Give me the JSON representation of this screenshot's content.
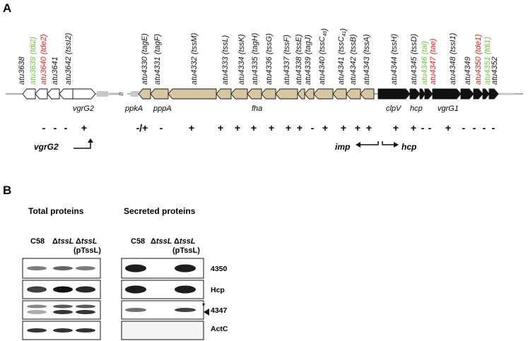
{
  "colors": {
    "black": "#111111",
    "tan": "#d8c7a2",
    "white": "#ffffff",
    "green": "#6fc13b",
    "red": "#e0201b",
    "bg_line": "#7a7a7a",
    "grey_arrow": "#c8c8c8"
  },
  "panelA": {
    "label": "A",
    "genes": [
      {
        "id": "g1",
        "parts": [
          {
            "t": "atu3638",
            "c": "black"
          }
        ],
        "fill": "white",
        "sign": "-"
      },
      {
        "id": "g2",
        "parts": [
          {
            "t": "atu3639",
            "c": "green"
          },
          {
            "t": " (tdi2)",
            "c": "green"
          }
        ],
        "fill": "white",
        "sign": "-"
      },
      {
        "id": "g3",
        "parts": [
          {
            "t": "atu3640",
            "c": "red"
          },
          {
            "t": " (tde2)",
            "c": "red"
          }
        ],
        "fill": "white",
        "sign": "-"
      },
      {
        "id": "g4",
        "parts": [
          {
            "t": "atu3641",
            "c": "black"
          }
        ],
        "fill": "white",
        "sign": "+"
      },
      {
        "id": "g5",
        "parts": [
          {
            "t": "atu3642",
            "c": "black"
          },
          {
            "t": " (tssI2)",
            "c": "black"
          }
        ],
        "fill": "white",
        "sign": ""
      },
      {
        "id": "g6",
        "parts": [
          {
            "t": "atu4330",
            "c": "black"
          },
          {
            "t": " (tagE)",
            "c": "black"
          }
        ],
        "fill": "tan",
        "sign": "-/+"
      },
      {
        "id": "g7",
        "parts": [
          {
            "t": "atu4331",
            "c": "black"
          },
          {
            "t": " (tagF)",
            "c": "black"
          }
        ],
        "fill": "tan",
        "sign": "-"
      },
      {
        "id": "g8",
        "parts": [
          {
            "t": "atu4332",
            "c": "black"
          },
          {
            "t": " (tssM)",
            "c": "black"
          }
        ],
        "fill": "tan",
        "sign": "+"
      },
      {
        "id": "g9",
        "parts": [
          {
            "t": "atu4333",
            "c": "black"
          },
          {
            "t": " (tssL)",
            "c": "black"
          }
        ],
        "fill": "tan",
        "sign": "+"
      },
      {
        "id": "g10",
        "parts": [
          {
            "t": "atu4334",
            "c": "black"
          },
          {
            "t": " (tssK)",
            "c": "black"
          }
        ],
        "fill": "tan",
        "sign": "+"
      },
      {
        "id": "g11",
        "parts": [
          {
            "t": "atu4335",
            "c": "black"
          },
          {
            "t": " (tagH)",
            "c": "black"
          }
        ],
        "fill": "tan",
        "sign": "+"
      },
      {
        "id": "g12",
        "parts": [
          {
            "t": "atu4336",
            "c": "black"
          },
          {
            "t": " (tssG)",
            "c": "black"
          }
        ],
        "fill": "tan",
        "sign": "+"
      },
      {
        "id": "g13",
        "parts": [
          {
            "t": "atu4337",
            "c": "black"
          },
          {
            "t": " (tssF)",
            "c": "black"
          }
        ],
        "fill": "tan",
        "sign": "+"
      },
      {
        "id": "g14",
        "parts": [
          {
            "t": "atu4338",
            "c": "black"
          },
          {
            "t": " (tssE)",
            "c": "black"
          }
        ],
        "fill": "tan",
        "sign": "+"
      },
      {
        "id": "g15",
        "parts": [
          {
            "t": "atu4339",
            "c": "black"
          },
          {
            "t": " (tagJ)",
            "c": "black"
          }
        ],
        "fill": "tan",
        "sign": "-"
      },
      {
        "id": "g16",
        "parts": [
          {
            "t": "atu4340",
            "c": "black"
          },
          {
            "t": " (tssC",
            "c": "black"
          },
          {
            "t": "40",
            "c": "black",
            "sub": true
          },
          {
            "t": ")",
            "c": "black"
          }
        ],
        "fill": "tan",
        "sign": "+"
      },
      {
        "id": "g17",
        "parts": [
          {
            "t": "atu4341",
            "c": "black"
          },
          {
            "t": " (tssC",
            "c": "black"
          },
          {
            "t": "41",
            "c": "black",
            "sub": true
          },
          {
            "t": ")",
            "c": "black"
          }
        ],
        "fill": "tan",
        "sign": "+"
      },
      {
        "id": "g18",
        "parts": [
          {
            "t": "atu4342",
            "c": "black"
          },
          {
            "t": " (tssB)",
            "c": "black"
          }
        ],
        "fill": "tan",
        "sign": "+"
      },
      {
        "id": "g19",
        "parts": [
          {
            "t": "atu4343",
            "c": "black"
          },
          {
            "t": " (tssA)",
            "c": "black"
          }
        ],
        "fill": "tan",
        "sign": "+"
      },
      {
        "id": "g20",
        "parts": [
          {
            "t": "atu4344",
            "c": "black"
          },
          {
            "t": " (tssH)",
            "c": "black"
          }
        ],
        "fill": "black",
        "sign": "+"
      },
      {
        "id": "g21",
        "parts": [
          {
            "t": "atu4345",
            "c": "black"
          },
          {
            "t": " (tssD)",
            "c": "black"
          }
        ],
        "fill": "black",
        "sign": "+"
      },
      {
        "id": "g22",
        "parts": [
          {
            "t": "atu4346",
            "c": "green"
          },
          {
            "t": " (tai)",
            "c": "green"
          }
        ],
        "fill": "black",
        "sign": "-"
      },
      {
        "id": "g23",
        "parts": [
          {
            "t": "atu4347",
            "c": "red"
          },
          {
            "t": " (tae)",
            "c": "red"
          }
        ],
        "fill": "black",
        "sign": "-"
      },
      {
        "id": "g24",
        "parts": [
          {
            "t": "atu4348",
            "c": "black"
          },
          {
            "t": " (tssI1)",
            "c": "black"
          }
        ],
        "fill": "black",
        "sign": "+"
      },
      {
        "id": "g25",
        "parts": [
          {
            "t": "atu4349",
            "c": "black"
          }
        ],
        "fill": "black",
        "sign": "-"
      },
      {
        "id": "g26",
        "parts": [
          {
            "t": "atu4350",
            "c": "red"
          },
          {
            "t": " (tde1)",
            "c": "red"
          }
        ],
        "fill": "black",
        "sign": "-"
      },
      {
        "id": "g27",
        "parts": [
          {
            "t": "atu4351",
            "c": "green"
          },
          {
            "t": " (tdi1)",
            "c": "green"
          }
        ],
        "fill": "black",
        "sign": "-"
      },
      {
        "id": "g28",
        "parts": [
          {
            "t": "atu4352",
            "c": "black"
          }
        ],
        "fill": "black",
        "sign": "-"
      }
    ],
    "below_labels": [
      "vgrG2",
      "ppkA",
      "pppA",
      "fha",
      "clpV",
      "hcp",
      "vgrG1"
    ],
    "operons": [
      {
        "label": "vgrG2",
        "direction": "right"
      },
      {
        "label": "imp",
        "direction": "left"
      },
      {
        "label": "hcp",
        "direction": "right"
      }
    ]
  },
  "panelB": {
    "label": "B",
    "total_header": "Total proteins",
    "secreted_header": "Secreted proteins",
    "lanes_total": [
      {
        "name": "C58"
      },
      {
        "name": "ΔtssL",
        "prefix": "Δ",
        "italic": "tssL"
      },
      {
        "name": "ΔtssL (pTssL)",
        "prefix": "Δ",
        "italic": "tssL",
        "line2": "(pTssL)"
      }
    ],
    "lanes_secreted": [
      {
        "name": "C58"
      },
      {
        "name": "ΔtssL",
        "prefix": "Δ",
        "italic": "tssL"
      },
      {
        "name": "ΔtssL (pTssL)",
        "prefix": "Δ",
        "italic": "tssL",
        "line2": "(pTssL)"
      }
    ],
    "blots": [
      "4350",
      "Hcp",
      "4347",
      "ActC"
    ],
    "asterisk": "*",
    "band_intensity_total": {
      "4350": [
        0.55,
        0.65,
        0.55
      ],
      "Hcp": [
        0.8,
        1.0,
        0.9
      ],
      "4347_upper": [
        0.5,
        0.7,
        0.7
      ],
      "4347_lower": [
        0.35,
        0.85,
        0.85
      ],
      "ActC": [
        0.85,
        0.85,
        0.85
      ]
    },
    "band_intensity_secreted": {
      "4350": [
        0.95,
        0.0,
        0.95
      ],
      "Hcp": [
        0.95,
        0.0,
        0.95
      ],
      "4347": [
        0.6,
        0.0,
        0.8
      ],
      "ActC": [
        0.0,
        0.0,
        0.0
      ]
    }
  }
}
